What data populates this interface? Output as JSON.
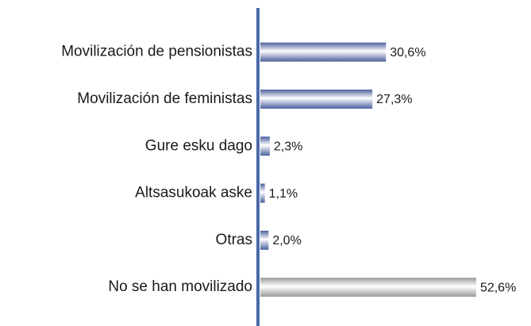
{
  "chart_data": {
    "type": "barh",
    "categories": [
      "Movilización de pensionistas",
      "Movilización de feministas",
      "Gure esku dago",
      "Altsasukoak aske",
      "Otras",
      "No se han movilizado"
    ],
    "values": [
      30.6,
      27.3,
      2.3,
      1.1,
      2.0,
      52.6
    ],
    "value_labels": [
      "30,6%",
      "27,3%",
      "2,3%",
      "1,1%",
      "2,0%",
      "52,6%"
    ],
    "colors": [
      "#4a5f9c",
      "#4a5f9c",
      "#4a5f9c",
      "#4a5f9c",
      "#4a5f9c",
      "#9a9a9a"
    ],
    "axis_color": "#4a69a8"
  }
}
